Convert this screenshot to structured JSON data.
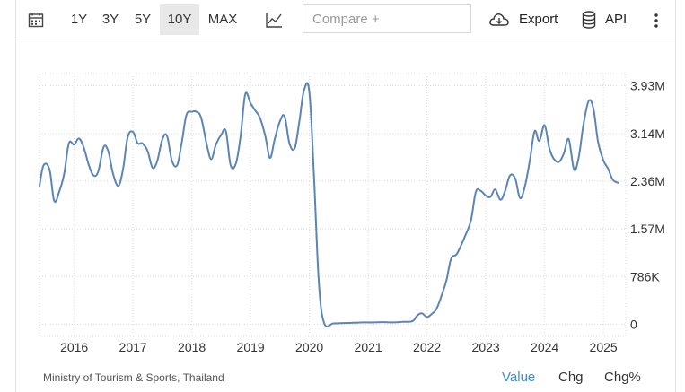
{
  "toolbar": {
    "ranges": [
      "1Y",
      "3Y",
      "5Y",
      "10Y",
      "MAX"
    ],
    "active_range": "10Y",
    "compare_placeholder": "Compare +",
    "export_label": "Export",
    "api_label": "API",
    "icons": [
      "calendar-icon",
      "line-chart-icon",
      "cloud-download-icon",
      "database-icon",
      "more-vertical-icon"
    ]
  },
  "chart_data": {
    "type": "line",
    "title": "",
    "xlabel": "",
    "ylabel": "",
    "y_tick_labels": [
      "3.93M",
      "3.14M",
      "2.36M",
      "1.57M",
      "786K",
      "0"
    ],
    "y_tick_values": [
      3930000,
      3140000,
      2360000,
      1570000,
      786000,
      0
    ],
    "x_tick_labels": [
      "2016",
      "2017",
      "2018",
      "2019",
      "2020",
      "2021",
      "2022",
      "2023",
      "2024",
      "2025"
    ],
    "xlim": [
      2015.41,
      2025.38
    ],
    "ylim": [
      -200000,
      4130000
    ],
    "grid": true,
    "line_color": "#5b85b6",
    "series": [
      {
        "name": "",
        "points": [
          [
            2015.41,
            2.28
          ],
          [
            2015.48,
            2.62
          ],
          [
            2015.58,
            2.55
          ],
          [
            2015.66,
            2.03
          ],
          [
            2015.75,
            2.2
          ],
          [
            2015.83,
            2.48
          ],
          [
            2015.91,
            2.98
          ],
          [
            2016.0,
            2.96
          ],
          [
            2016.08,
            3.06
          ],
          [
            2016.16,
            2.92
          ],
          [
            2016.25,
            2.62
          ],
          [
            2016.33,
            2.45
          ],
          [
            2016.41,
            2.52
          ],
          [
            2016.5,
            2.92
          ],
          [
            2016.58,
            2.85
          ],
          [
            2016.66,
            2.48
          ],
          [
            2016.75,
            2.28
          ],
          [
            2016.83,
            2.55
          ],
          [
            2016.91,
            3.08
          ],
          [
            2017.0,
            3.17
          ],
          [
            2017.08,
            2.98
          ],
          [
            2017.16,
            2.98
          ],
          [
            2017.25,
            2.85
          ],
          [
            2017.33,
            2.58
          ],
          [
            2017.41,
            2.68
          ],
          [
            2017.5,
            3.05
          ],
          [
            2017.58,
            3.1
          ],
          [
            2017.66,
            2.7
          ],
          [
            2017.75,
            2.62
          ],
          [
            2017.83,
            3.0
          ],
          [
            2017.91,
            3.45
          ],
          [
            2018.0,
            3.5
          ],
          [
            2018.08,
            3.5
          ],
          [
            2018.16,
            3.4
          ],
          [
            2018.25,
            2.98
          ],
          [
            2018.33,
            2.72
          ],
          [
            2018.41,
            2.96
          ],
          [
            2018.5,
            3.12
          ],
          [
            2018.58,
            3.18
          ],
          [
            2018.66,
            2.62
          ],
          [
            2018.75,
            2.65
          ],
          [
            2018.83,
            3.1
          ],
          [
            2018.91,
            3.79
          ],
          [
            2019.0,
            3.64
          ],
          [
            2019.08,
            3.52
          ],
          [
            2019.16,
            3.4
          ],
          [
            2019.25,
            3.1
          ],
          [
            2019.33,
            2.74
          ],
          [
            2019.41,
            3.05
          ],
          [
            2019.5,
            3.35
          ],
          [
            2019.58,
            3.42
          ],
          [
            2019.66,
            2.98
          ],
          [
            2019.75,
            2.9
          ],
          [
            2019.83,
            3.35
          ],
          [
            2019.91,
            3.86
          ],
          [
            2020.0,
            3.82
          ],
          [
            2020.08,
            2.38
          ],
          [
            2020.16,
            0.7
          ],
          [
            2020.25,
            0.02
          ],
          [
            2020.41,
            0.015
          ],
          [
            2020.58,
            0.02
          ],
          [
            2020.75,
            0.025
          ],
          [
            2020.91,
            0.03
          ],
          [
            2021.08,
            0.03
          ],
          [
            2021.25,
            0.035
          ],
          [
            2021.41,
            0.03
          ],
          [
            2021.58,
            0.04
          ],
          [
            2021.75,
            0.05
          ],
          [
            2021.83,
            0.14
          ],
          [
            2021.91,
            0.18
          ],
          [
            2022.0,
            0.12
          ],
          [
            2022.08,
            0.17
          ],
          [
            2022.16,
            0.25
          ],
          [
            2022.25,
            0.48
          ],
          [
            2022.33,
            0.72
          ],
          [
            2022.41,
            1.08
          ],
          [
            2022.5,
            1.15
          ],
          [
            2022.58,
            1.3
          ],
          [
            2022.66,
            1.48
          ],
          [
            2022.75,
            1.72
          ],
          [
            2022.83,
            2.18
          ],
          [
            2022.91,
            2.2
          ],
          [
            2023.0,
            2.12
          ],
          [
            2023.08,
            2.1
          ],
          [
            2023.16,
            2.22
          ],
          [
            2023.25,
            2.05
          ],
          [
            2023.33,
            2.2
          ],
          [
            2023.41,
            2.45
          ],
          [
            2023.5,
            2.4
          ],
          [
            2023.58,
            2.08
          ],
          [
            2023.66,
            2.25
          ],
          [
            2023.75,
            2.7
          ],
          [
            2023.83,
            3.18
          ],
          [
            2023.91,
            3.02
          ],
          [
            2024.0,
            3.28
          ],
          [
            2024.08,
            2.9
          ],
          [
            2024.16,
            2.72
          ],
          [
            2024.25,
            2.68
          ],
          [
            2024.33,
            2.82
          ],
          [
            2024.41,
            3.05
          ],
          [
            2024.5,
            2.55
          ],
          [
            2024.58,
            2.75
          ],
          [
            2024.66,
            3.28
          ],
          [
            2024.75,
            3.68
          ],
          [
            2024.83,
            3.55
          ],
          [
            2024.91,
            3.0
          ],
          [
            2025.0,
            2.7
          ],
          [
            2025.08,
            2.56
          ],
          [
            2025.16,
            2.38
          ],
          [
            2025.25,
            2.33
          ]
        ]
      }
    ]
  },
  "footer": {
    "source": "Ministry of Tourism & Sports, Thailand",
    "tabs": [
      "Value",
      "Chg",
      "Chg%"
    ],
    "active_tab": "Value"
  }
}
